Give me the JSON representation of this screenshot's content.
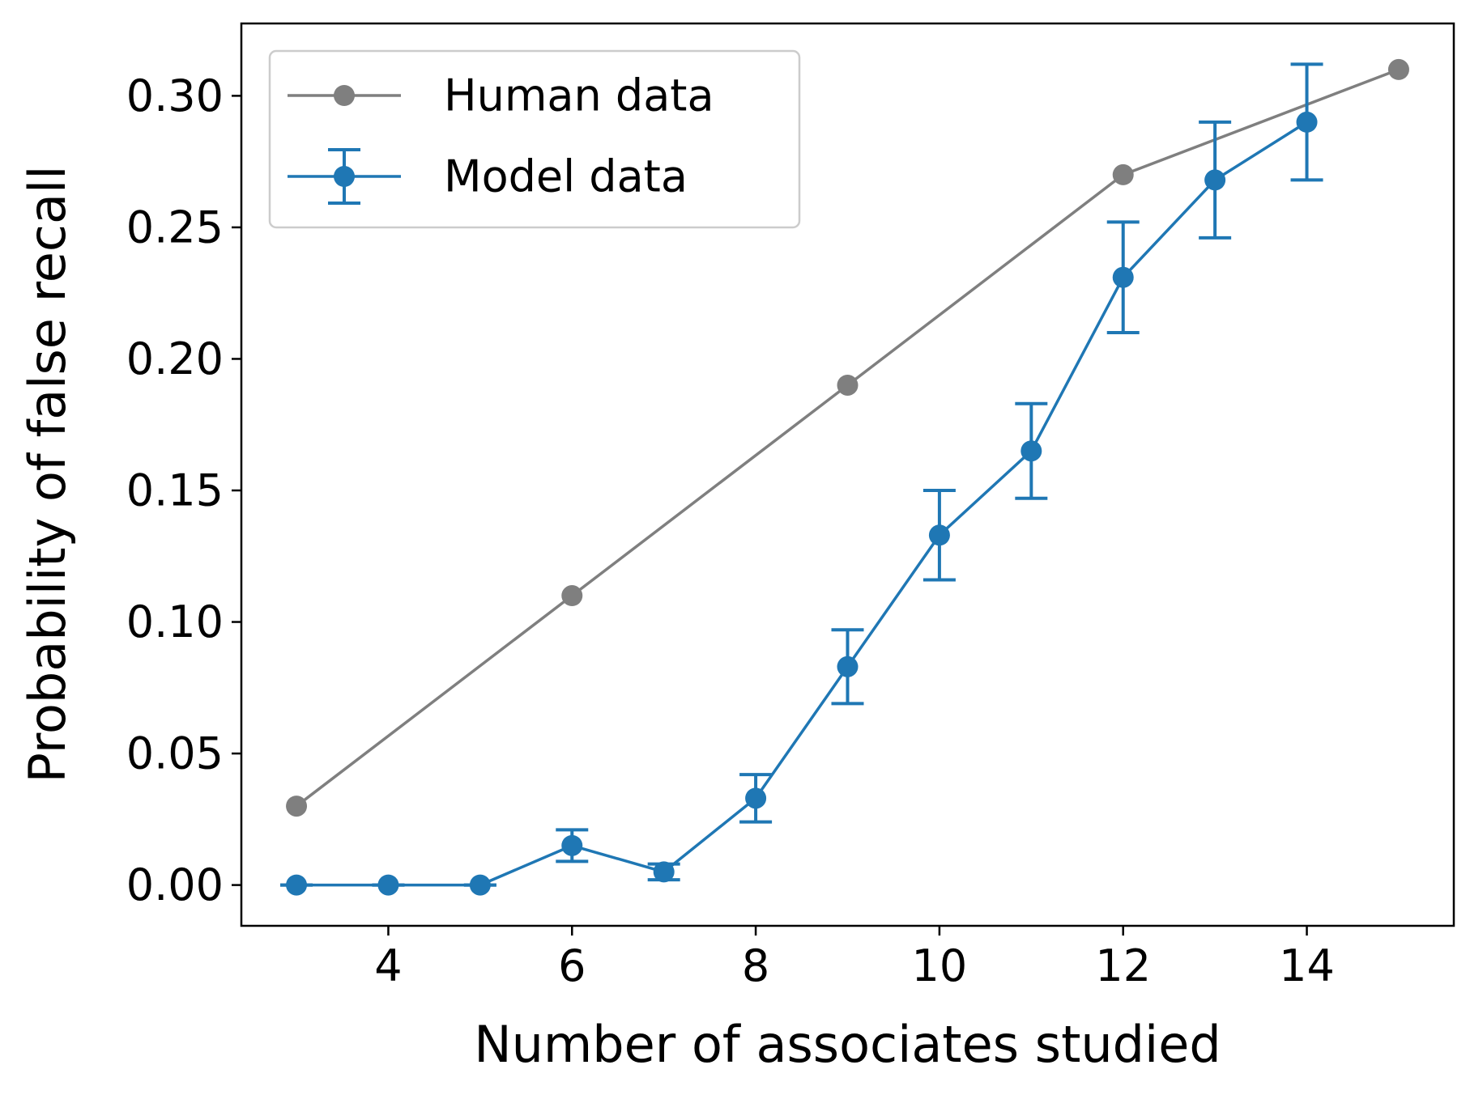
{
  "chart_data": {
    "type": "line",
    "xlabel": "Number of associates studied",
    "ylabel": "Probability of false recall",
    "xlim": [
      2.4,
      15.6
    ],
    "ylim": [
      -0.0155,
      0.3275
    ],
    "x_ticks": [
      4,
      6,
      8,
      10,
      12,
      14
    ],
    "y_ticks": [
      0.0,
      0.05,
      0.1,
      0.15,
      0.2,
      0.25,
      0.3
    ],
    "x_tick_labels": [
      "4",
      "6",
      "8",
      "10",
      "12",
      "14"
    ],
    "y_tick_labels": [
      "0.00",
      "0.05",
      "0.10",
      "0.15",
      "0.20",
      "0.25",
      "0.30"
    ],
    "grid": false,
    "legend": {
      "position": "top-left",
      "entries": [
        "Human data",
        "Model data"
      ]
    },
    "series": [
      {
        "name": "Human data",
        "color": "#7f7f7f",
        "marker": "circle",
        "x": [
          3,
          6,
          9,
          12,
          15
        ],
        "y": [
          0.03,
          0.11,
          0.19,
          0.27,
          0.31
        ]
      },
      {
        "name": "Model data",
        "color": "#1f77b4",
        "marker": "circle",
        "error_bars": true,
        "x": [
          3,
          4,
          5,
          6,
          7,
          8,
          9,
          10,
          11,
          12,
          13,
          14
        ],
        "y": [
          0.0,
          0.0,
          0.0,
          0.015,
          0.005,
          0.033,
          0.083,
          0.133,
          0.165,
          0.231,
          0.268,
          0.29
        ],
        "yerr": [
          0.0,
          0.0,
          0.0,
          0.006,
          0.003,
          0.009,
          0.014,
          0.017,
          0.018,
          0.021,
          0.022,
          0.022
        ]
      }
    ]
  }
}
